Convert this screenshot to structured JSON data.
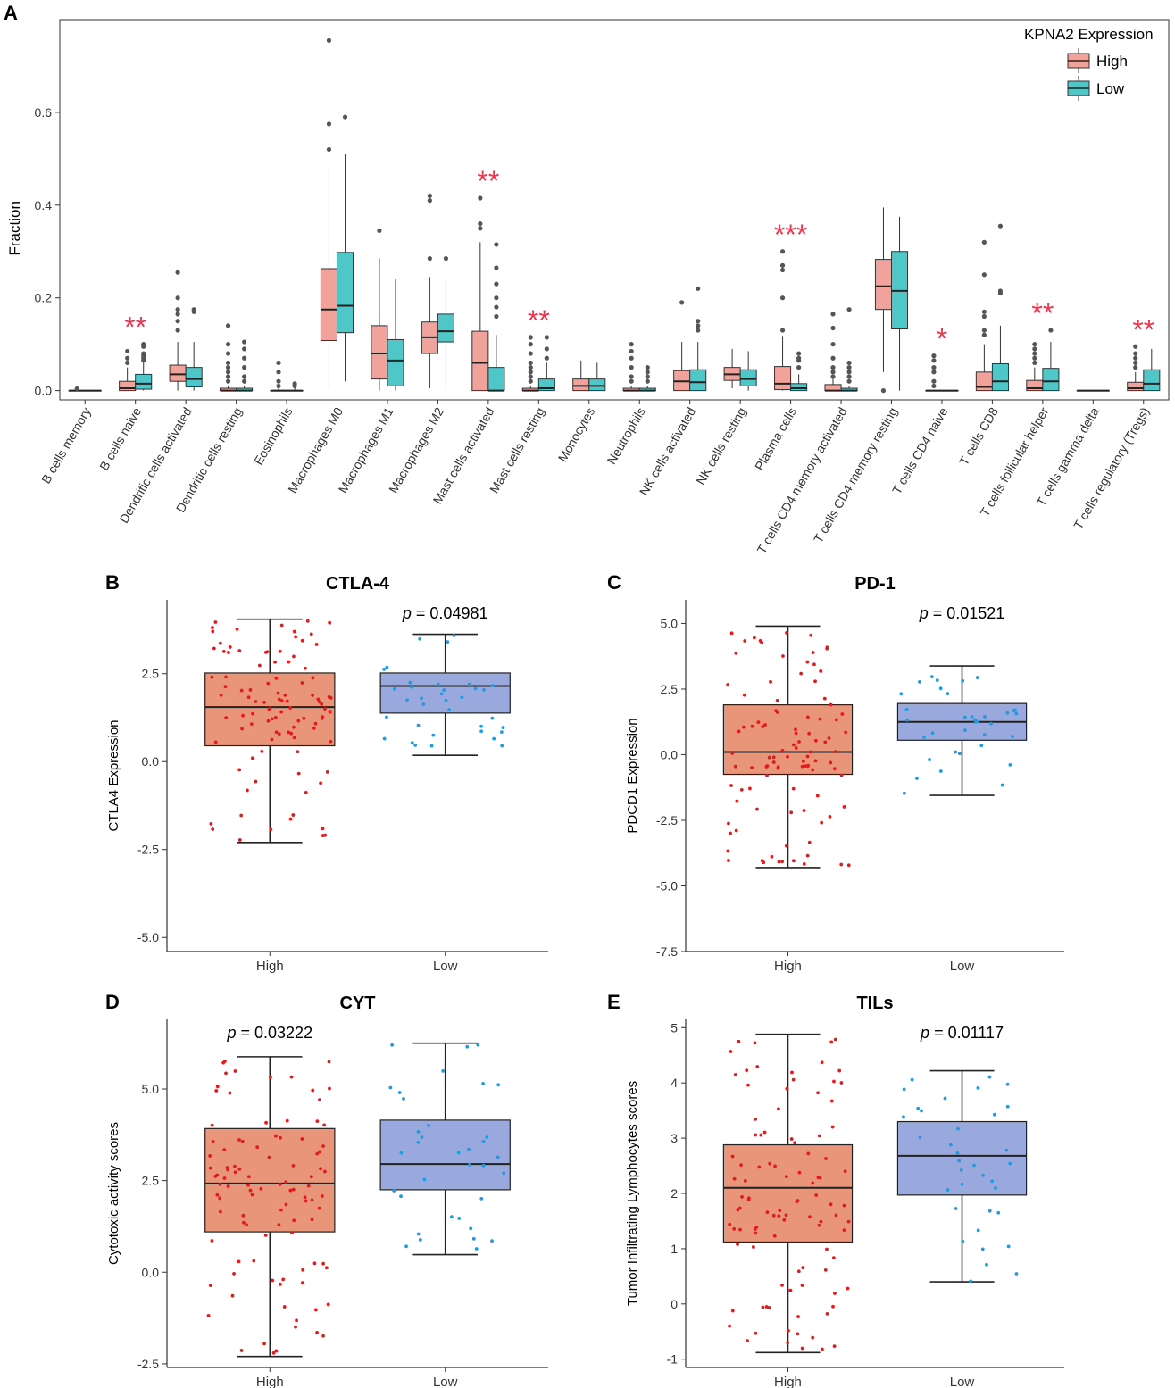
{
  "colors": {
    "a_high": "#F1A29B",
    "a_low": "#4FC7C9",
    "star": "#E8384F",
    "box_high": "#E8957A",
    "box_low": "#9AA9DD",
    "dot_high": "#E41A1C",
    "dot_low": "#1F9BE0",
    "outlier": "#555555",
    "line": "#222222"
  },
  "chart_data": [
    {
      "panel": "A",
      "type": "boxplot",
      "ylabel": "Fraction",
      "yticks": [
        "0.0",
        "0.2",
        "0.4",
        "0.6"
      ],
      "ytick_values": [
        0,
        0.2,
        0.4,
        0.6
      ],
      "ylim": [
        -0.02,
        0.8
      ],
      "legend": {
        "title": "KPNA2 Expression",
        "items": [
          "High",
          "Low"
        ],
        "position": "top-right"
      },
      "categories": [
        "B cells memory",
        "B cells naive",
        "Dendritic cells activated",
        "Dendritic cells resting",
        "Eosinophils",
        "Macrophages M0",
        "Macrophages M1",
        "Macrophages M2",
        "Mast cells activated",
        "Mast cells resting",
        "Monocytes",
        "Neutrophils",
        "NK cells activated",
        "NK cells resting",
        "Plasma cells",
        "T cells CD4 memory activated",
        "T cells CD4 memory resting",
        "T cells CD4 naive",
        "T cells CD8",
        "T cells follicular helper",
        "T cells gamma delta",
        "T cells regulatory (Tregs)"
      ],
      "significance": [
        "",
        "**",
        "",
        "",
        "",
        "",
        "",
        "",
        "**",
        "**",
        "",
        "",
        "",
        "",
        "***",
        "",
        "",
        "*",
        "",
        "**",
        "",
        "**"
      ],
      "series": [
        {
          "name": "High",
          "boxes": [
            {
              "min": 0,
              "q1": 0,
              "med": 0,
              "q3": 0,
              "max": 0.005,
              "out": [
                0.004
              ]
            },
            {
              "min": 0,
              "q1": 0,
              "med": 0.005,
              "q3": 0.02,
              "max": 0.05,
              "out": [
                0.06,
                0.07,
                0.085
              ]
            },
            {
              "min": 0,
              "q1": 0.02,
              "med": 0.035,
              "q3": 0.055,
              "max": 0.105,
              "out": [
                0.13,
                0.15,
                0.165,
                0.175,
                0.2,
                0.255
              ]
            },
            {
              "min": 0,
              "q1": 0,
              "med": 0,
              "q3": 0.005,
              "max": 0.01,
              "out": [
                0.02,
                0.03,
                0.04,
                0.05,
                0.06,
                0.08,
                0.1,
                0.14
              ]
            },
            {
              "min": 0,
              "q1": 0,
              "med": 0,
              "q3": 0,
              "max": 0.005,
              "out": [
                0.01,
                0.02,
                0.04,
                0.06
              ]
            },
            {
              "min": 0.005,
              "q1": 0.108,
              "med": 0.175,
              "q3": 0.263,
              "max": 0.48,
              "out": [
                0.52,
                0.575,
                0.755
              ]
            },
            {
              "min": 0,
              "q1": 0.025,
              "med": 0.08,
              "q3": 0.14,
              "max": 0.285,
              "out": [
                0.345
              ]
            },
            {
              "min": 0.005,
              "q1": 0.08,
              "med": 0.115,
              "q3": 0.148,
              "max": 0.245,
              "out": [
                0.285,
                0.41,
                0.42
              ]
            },
            {
              "min": 0,
              "q1": 0,
              "med": 0.06,
              "q3": 0.128,
              "max": 0.32,
              "out": [
                0.35,
                0.36,
                0.415
              ]
            },
            {
              "min": 0,
              "q1": 0,
              "med": 0,
              "q3": 0.005,
              "max": 0.01,
              "out": [
                0.02,
                0.03,
                0.04,
                0.05,
                0.06,
                0.08,
                0.1,
                0.115
              ]
            },
            {
              "min": 0,
              "q1": 0,
              "med": 0.01,
              "q3": 0.025,
              "max": 0.065,
              "out": []
            },
            {
              "min": 0,
              "q1": 0,
              "med": 0,
              "q3": 0.005,
              "max": 0.01,
              "out": [
                0.02,
                0.03,
                0.05,
                0.07,
                0.085,
                0.1
              ]
            },
            {
              "min": 0,
              "q1": 0,
              "med": 0.02,
              "q3": 0.043,
              "max": 0.105,
              "out": [
                0.19
              ]
            },
            {
              "min": 0.005,
              "q1": 0.022,
              "med": 0.035,
              "q3": 0.05,
              "max": 0.09,
              "out": []
            },
            {
              "min": 0,
              "q1": 0.002,
              "med": 0.015,
              "q3": 0.052,
              "max": 0.118,
              "out": [
                0.13,
                0.2,
                0.26,
                0.27,
                0.3
              ]
            },
            {
              "min": 0,
              "q1": 0,
              "med": 0,
              "q3": 0.013,
              "max": 0.025,
              "out": [
                0.03,
                0.04,
                0.05,
                0.07,
                0.1,
                0.135,
                0.165
              ]
            },
            {
              "min": 0.04,
              "q1": 0.175,
              "med": 0.225,
              "q3": 0.283,
              "max": 0.395,
              "out": [
                0
              ]
            },
            {
              "min": 0,
              "q1": 0,
              "med": 0,
              "q3": 0,
              "max": 0.002,
              "out": [
                0.01,
                0.02,
                0.04,
                0.05,
                0.065,
                0.075
              ]
            },
            {
              "min": 0,
              "q1": 0,
              "med": 0.008,
              "q3": 0.04,
              "max": 0.1,
              "out": [
                0.12,
                0.13,
                0.16,
                0.17,
                0.25,
                0.32
              ]
            },
            {
              "min": 0,
              "q1": 0,
              "med": 0.005,
              "q3": 0.022,
              "max": 0.05,
              "out": [
                0.06,
                0.07,
                0.08,
                0.09,
                0.1
              ]
            },
            {
              "min": 0,
              "q1": 0,
              "med": 0,
              "q3": 0,
              "max": 0,
              "out": []
            },
            {
              "min": 0,
              "q1": 0,
              "med": 0.005,
              "q3": 0.018,
              "max": 0.04,
              "out": [
                0.05,
                0.06,
                0.07,
                0.08,
                0.095
              ]
            }
          ]
        },
        {
          "name": "Low",
          "boxes": [
            {
              "min": 0,
              "q1": 0,
              "med": 0,
              "q3": 0,
              "max": 0,
              "out": []
            },
            {
              "min": 0,
              "q1": 0.003,
              "med": 0.015,
              "q3": 0.035,
              "max": 0.06,
              "out": [
                0.065,
                0.07,
                0.075,
                0.08,
                0.095,
                0.1
              ]
            },
            {
              "min": 0,
              "q1": 0.008,
              "med": 0.025,
              "q3": 0.05,
              "max": 0.105,
              "out": [
                0.17,
                0.175
              ]
            },
            {
              "min": 0,
              "q1": 0,
              "med": 0,
              "q3": 0.005,
              "max": 0.01,
              "out": [
                0.02,
                0.03,
                0.05,
                0.07,
                0.09,
                0.105
              ]
            },
            {
              "min": 0,
              "q1": 0,
              "med": 0,
              "q3": 0,
              "max": 0.005,
              "out": [
                0.01,
                0.015
              ]
            },
            {
              "min": 0.02,
              "q1": 0.125,
              "med": 0.183,
              "q3": 0.298,
              "max": 0.51,
              "out": [
                0.59
              ]
            },
            {
              "min": 0,
              "q1": 0.01,
              "med": 0.065,
              "q3": 0.11,
              "max": 0.24,
              "out": []
            },
            {
              "min": 0.005,
              "q1": 0.105,
              "med": 0.128,
              "q3": 0.165,
              "max": 0.245,
              "out": [
                0.285
              ]
            },
            {
              "min": 0,
              "q1": 0,
              "med": 0,
              "q3": 0.05,
              "max": 0.12,
              "out": [
                0.16,
                0.18,
                0.2,
                0.23,
                0.265,
                0.315
              ]
            },
            {
              "min": 0,
              "q1": 0,
              "med": 0.005,
              "q3": 0.025,
              "max": 0.06,
              "out": [
                0.07,
                0.09,
                0.115
              ]
            },
            {
              "min": 0,
              "q1": 0,
              "med": 0.01,
              "q3": 0.025,
              "max": 0.06,
              "out": []
            },
            {
              "min": 0,
              "q1": 0,
              "med": 0,
              "q3": 0.005,
              "max": 0.01,
              "out": [
                0.02,
                0.03,
                0.04,
                0.05
              ]
            },
            {
              "min": 0,
              "q1": 0,
              "med": 0.018,
              "q3": 0.045,
              "max": 0.105,
              "out": [
                0.13,
                0.14,
                0.15,
                0.22
              ]
            },
            {
              "min": 0,
              "q1": 0.01,
              "med": 0.025,
              "q3": 0.045,
              "max": 0.085,
              "out": []
            },
            {
              "min": 0,
              "q1": 0,
              "med": 0.005,
              "q3": 0.015,
              "max": 0.035,
              "out": [
                0.05,
                0.065,
                0.07,
                0.08
              ]
            },
            {
              "min": 0,
              "q1": 0,
              "med": 0,
              "q3": 0.005,
              "max": 0.01,
              "out": [
                0.02,
                0.03,
                0.04,
                0.05,
                0.06,
                0.175
              ]
            },
            {
              "min": 0,
              "q1": 0.133,
              "med": 0.215,
              "q3": 0.3,
              "max": 0.375,
              "out": []
            },
            {
              "min": 0,
              "q1": 0,
              "med": 0,
              "q3": 0,
              "max": 0,
              "out": []
            },
            {
              "min": 0,
              "q1": 0,
              "med": 0.02,
              "q3": 0.058,
              "max": 0.14,
              "out": [
                0.21,
                0.215,
                0.355
              ]
            },
            {
              "min": 0,
              "q1": 0,
              "med": 0.02,
              "q3": 0.048,
              "max": 0.105,
              "out": [
                0.13
              ]
            },
            {
              "min": 0,
              "q1": 0,
              "med": 0,
              "q3": 0,
              "max": 0,
              "out": []
            },
            {
              "min": 0,
              "q1": 0,
              "med": 0.015,
              "q3": 0.045,
              "max": 0.09,
              "out": []
            }
          ]
        }
      ]
    },
    {
      "panel": "B",
      "type": "boxplot",
      "title": "CTLA-4",
      "ylabel": "CTLA4 Expression",
      "categories": [
        "High",
        "Low"
      ],
      "ylim": [
        -5.4,
        4.6
      ],
      "yticks": [
        "-5.0",
        "-2.5",
        "0.0",
        "2.5"
      ],
      "ytick_values": [
        -5,
        -2.5,
        0,
        2.5
      ],
      "pvalue": "= 0.04981",
      "p_group": "Low",
      "boxes": [
        {
          "min": -2.3,
          "q1": 0.45,
          "med": 1.55,
          "q3": 2.52,
          "max": 4.05,
          "n": 100
        },
        {
          "min": 0.18,
          "q1": 1.38,
          "med": 2.15,
          "q3": 2.52,
          "max": 3.62,
          "n": 35
        }
      ]
    },
    {
      "panel": "C",
      "type": "boxplot",
      "title": "PD-1",
      "ylabel": "PDCD1 Expression",
      "categories": [
        "High",
        "Low"
      ],
      "ylim": [
        -7.5,
        5.9
      ],
      "yticks": [
        "-7.5",
        "-5.0",
        "-2.5",
        "0.0",
        "2.5",
        "5.0"
      ],
      "ytick_values": [
        -7.5,
        -5,
        -2.5,
        0,
        2.5,
        5
      ],
      "pvalue": "= 0.01521",
      "p_group": "Low",
      "boxes": [
        {
          "min": -4.3,
          "q1": -0.75,
          "med": 0.1,
          "q3": 1.9,
          "max": 4.9,
          "n": 100
        },
        {
          "min": -1.55,
          "q1": 0.55,
          "med": 1.25,
          "q3": 1.95,
          "max": 3.38,
          "n": 35
        }
      ]
    },
    {
      "panel": "D",
      "type": "boxplot",
      "title": "CYT",
      "ylabel": "Cytotoxic activity scores",
      "categories": [
        "High",
        "Low"
      ],
      "ylim": [
        -2.6,
        6.9
      ],
      "yticks": [
        "-2.5",
        "0.0",
        "2.5",
        "5.0"
      ],
      "ytick_values": [
        -2.5,
        0,
        2.5,
        5
      ],
      "pvalue": "= 0.03222",
      "p_group": "High",
      "boxes": [
        {
          "min": -2.3,
          "q1": 1.1,
          "med": 2.42,
          "q3": 3.92,
          "max": 5.88,
          "n": 100
        },
        {
          "min": 0.48,
          "q1": 2.25,
          "med": 2.95,
          "q3": 4.15,
          "max": 6.25,
          "n": 35
        }
      ]
    },
    {
      "panel": "E",
      "type": "boxplot",
      "title": "TILs",
      "ylabel": "Tumor Infiltrating Lymphocytes scores",
      "categories": [
        "High",
        "Low"
      ],
      "ylim": [
        -1.15,
        5.15
      ],
      "yticks": [
        "-1",
        "0",
        "1",
        "2",
        "3",
        "4",
        "5"
      ],
      "ytick_values": [
        -1,
        0,
        1,
        2,
        3,
        4,
        5
      ],
      "pvalue": "= 0.01117",
      "p_group": "Low",
      "boxes": [
        {
          "min": -0.88,
          "q1": 1.12,
          "med": 2.1,
          "q3": 2.88,
          "max": 4.88,
          "n": 100
        },
        {
          "min": 0.4,
          "q1": 1.97,
          "med": 2.68,
          "q3": 3.3,
          "max": 4.22,
          "n": 35
        }
      ]
    }
  ]
}
